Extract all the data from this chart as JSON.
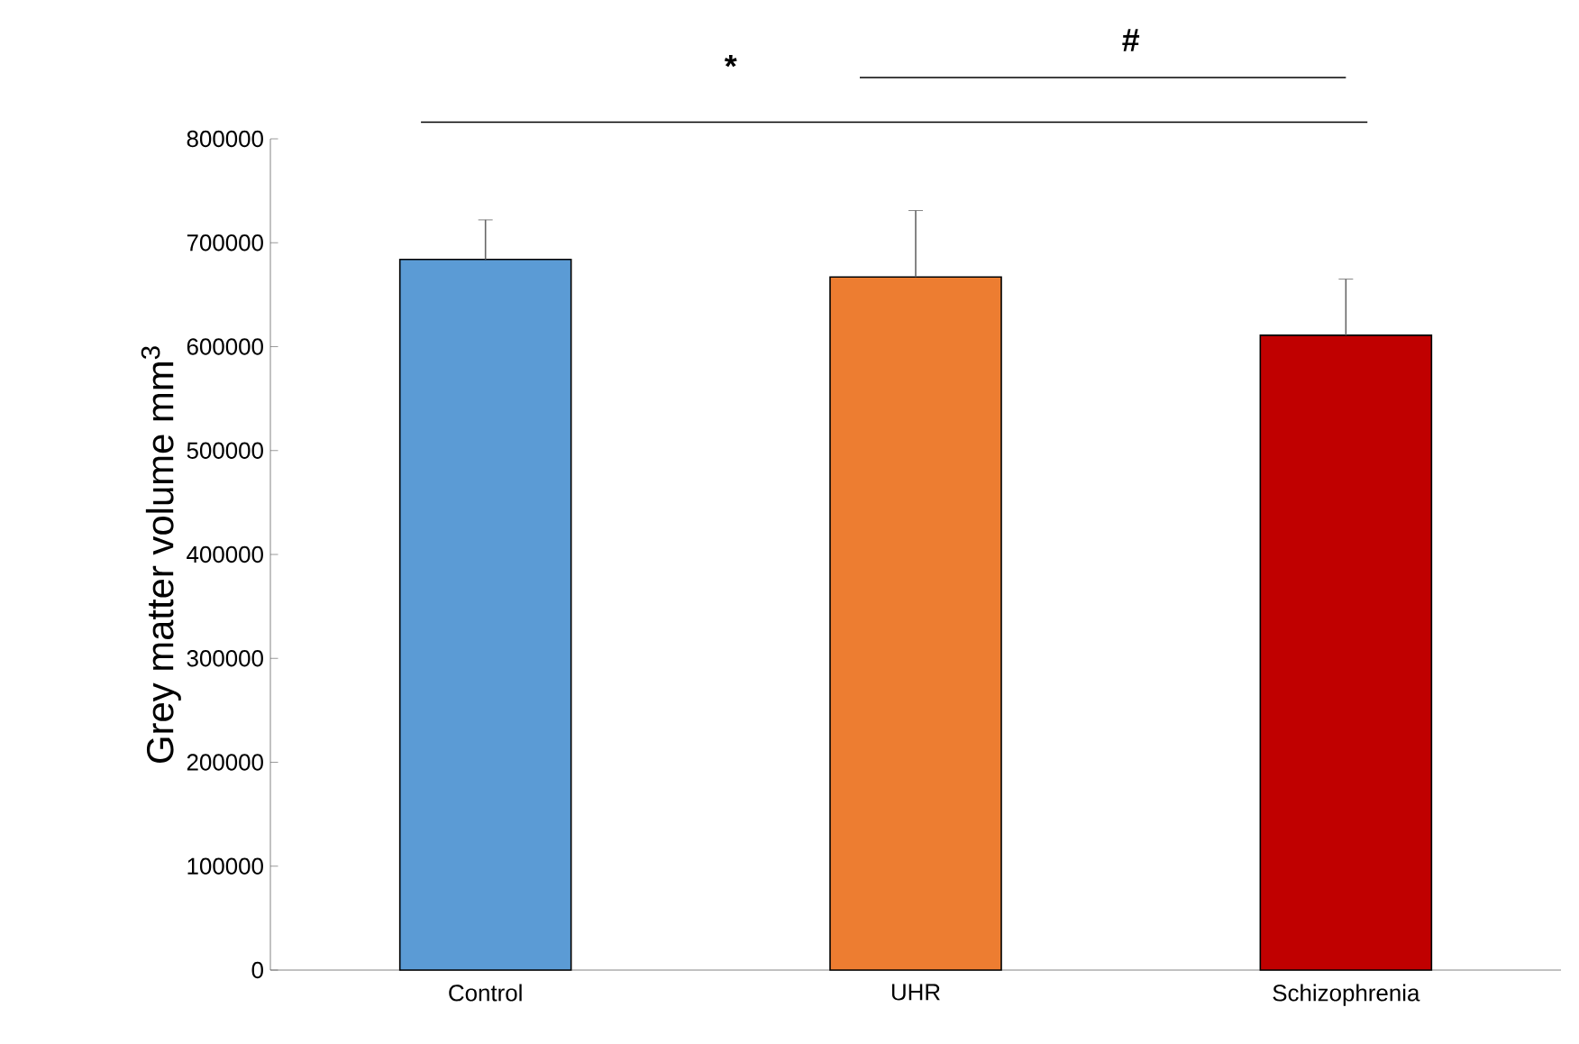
{
  "chart_data": {
    "type": "bar",
    "ylabel": "Grey matter volume mm$^{3}$",
    "categories": [
      "Control",
      "UHR",
      "Schizophrenia"
    ],
    "values": [
      684000,
      667000,
      611000
    ],
    "errors": [
      38000,
      64000,
      54000
    ],
    "colors": [
      "#5b9bd5",
      "#ed7d31",
      "#c00000"
    ],
    "ylim": [
      0,
      800000
    ],
    "yticks": [
      0,
      100000,
      200000,
      300000,
      400000,
      500000,
      600000,
      700000,
      800000
    ],
    "annotations": [
      "*",
      "#"
    ],
    "grid": false
  }
}
